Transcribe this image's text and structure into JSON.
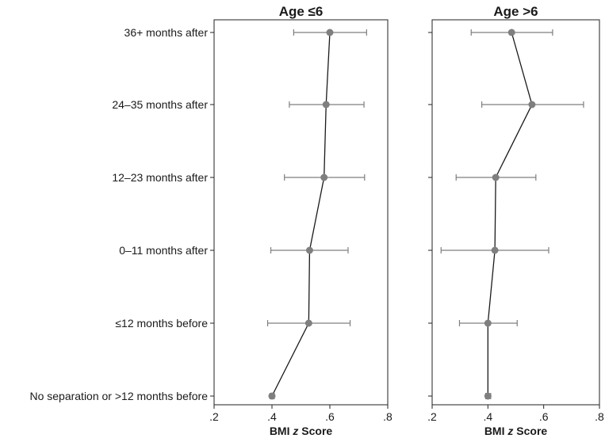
{
  "chart_data": {
    "type": "scatter",
    "categories": [
      "36+ months after",
      "24–35 months after",
      "12–23 months after",
      "0–11 months after",
      "≤12 months before",
      "No separation or >12 months before"
    ],
    "xlabel_prefix": "BMI ",
    "xlabel_italic": "z",
    "xlabel_suffix": " Score",
    "xlim": [
      0.2,
      0.8
    ],
    "xticks": [
      0.2,
      0.4,
      0.6,
      0.8
    ],
    "xtick_labels": [
      ".2",
      ".4",
      ".6",
      ".8"
    ],
    "marker_color": "#7f7f7f",
    "line_color": "#1a1a1a",
    "errorbar_color": "#7f7f7f",
    "panels": [
      {
        "title": "Age ≤6",
        "estimates": [
          0.6,
          0.587,
          0.58,
          0.53,
          0.527,
          0.4
        ],
        "ci_low": [
          0.475,
          0.46,
          0.443,
          0.396,
          0.385,
          0.393
        ],
        "ci_high": [
          0.727,
          0.718,
          0.72,
          0.663,
          0.67,
          0.408
        ]
      },
      {
        "title": "Age >6",
        "estimates": [
          0.485,
          0.558,
          0.428,
          0.425,
          0.4,
          0.4
        ],
        "ci_low": [
          0.34,
          0.378,
          0.286,
          0.232,
          0.298,
          0.392
        ],
        "ci_high": [
          0.632,
          0.743,
          0.572,
          0.618,
          0.505,
          0.41
        ]
      }
    ]
  }
}
